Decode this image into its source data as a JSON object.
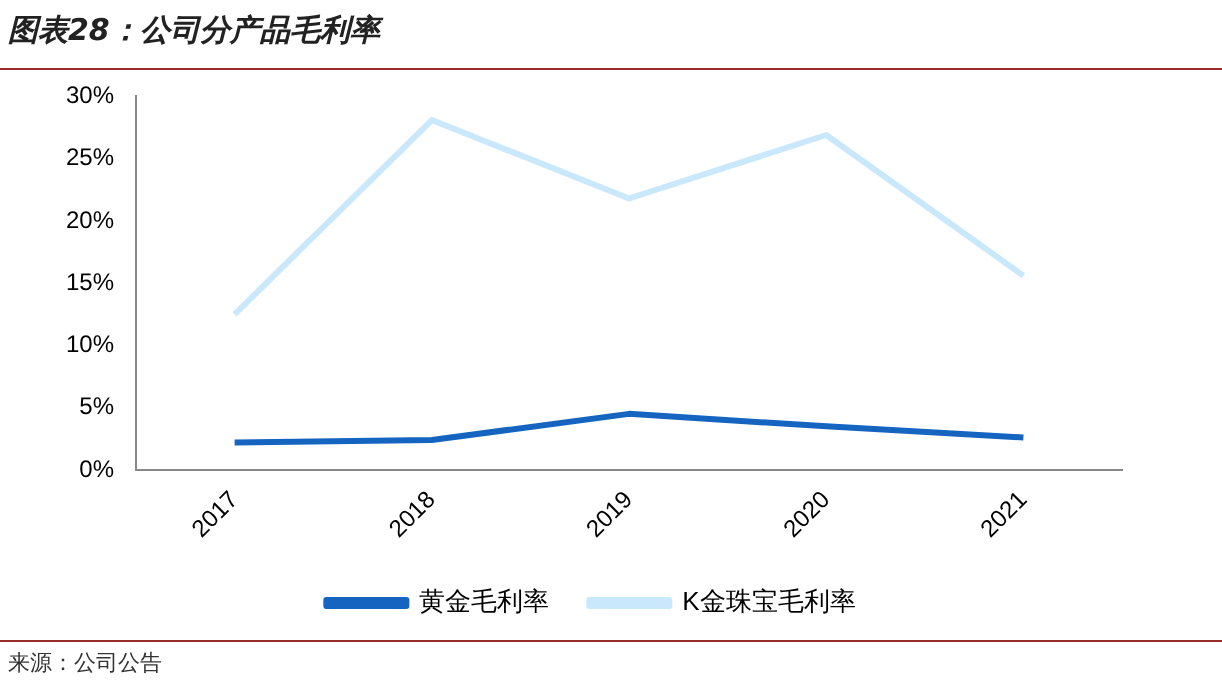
{
  "chart_data": {
    "type": "line",
    "title": "图表28：公司分产品毛利率",
    "annotations": [
      "来源：公司公告"
    ],
    "categories": [
      "2017",
      "2018",
      "2019",
      "2020",
      "2021"
    ],
    "series": [
      {
        "name": "黄金毛利率",
        "color": "#1565c0",
        "values": [
          2.2,
          2.4,
          4.5,
          3.5,
          2.6
        ]
      },
      {
        "name": "K金珠宝毛利率",
        "color": "#c9e8fb",
        "values": [
          12.5,
          28.1,
          21.8,
          26.9,
          15.6
        ]
      }
    ],
    "ylim": [
      0,
      30
    ],
    "yticks": [
      {
        "value": 0,
        "label": "0%"
      },
      {
        "value": 5,
        "label": "5%"
      },
      {
        "value": 10,
        "label": "10%"
      },
      {
        "value": 15,
        "label": "15%"
      },
      {
        "value": 20,
        "label": "20%"
      },
      {
        "value": 25,
        "label": "25%"
      },
      {
        "value": 30,
        "label": "30%"
      }
    ],
    "grid": false,
    "legend": "bottom",
    "marker": "none",
    "line_style": "solid"
  }
}
